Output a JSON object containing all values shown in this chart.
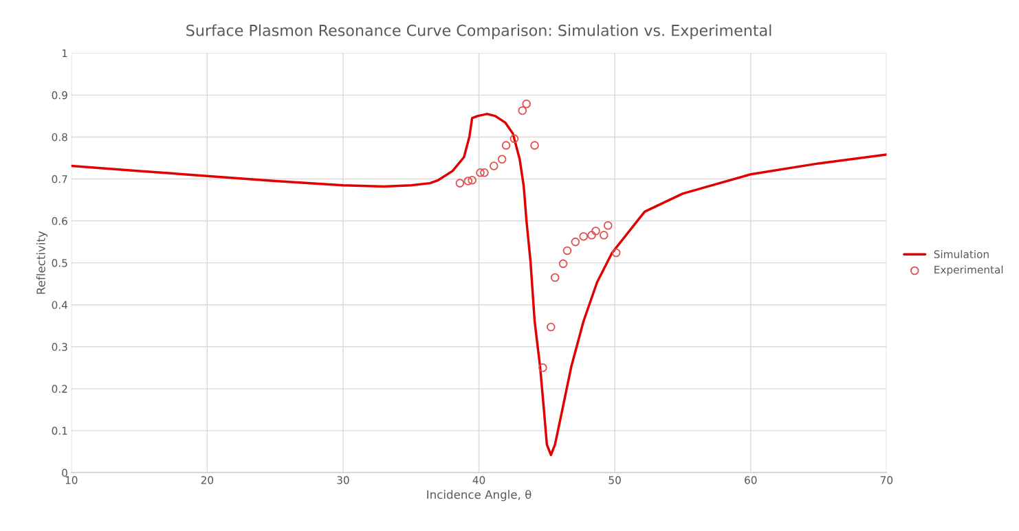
{
  "chart_data": {
    "type": "line",
    "title": "Surface Plasmon Resonance Curve Comparison: Simulation vs. Experimental",
    "xlabel": "Incidence Angle, θ",
    "ylabel": "Reflectivity",
    "xlim": [
      10,
      70
    ],
    "xticks": [
      10,
      20,
      30,
      40,
      50,
      60,
      70
    ],
    "ylim": [
      0,
      1
    ],
    "yticks": [
      0,
      0.1,
      0.2,
      0.3,
      0.4,
      0.5,
      0.6,
      0.7,
      0.8,
      0.9,
      1
    ],
    "grid": true,
    "legend": "right",
    "series": [
      {
        "name": "Simulation",
        "color": "#e00000",
        "marker": "none",
        "line_style": "solid",
        "x": [
          10,
          15,
          20,
          25,
          30,
          33,
          35,
          36.4,
          37,
          38.06,
          38.9,
          39.3,
          39.5,
          39.9,
          40.6,
          41.2,
          41.95,
          42.5,
          43.0,
          43.3,
          43.5,
          43.8,
          44.1,
          44.5,
          44.8,
          45.0,
          45.3,
          45.6,
          46.1,
          46.8,
          47.7,
          48.7,
          49.8,
          52.2,
          55,
          60,
          65,
          70
        ],
        "values": [
          0.731,
          0.719,
          0.707,
          0.695,
          0.685,
          0.682,
          0.685,
          0.69,
          0.697,
          0.719,
          0.752,
          0.801,
          0.845,
          0.85,
          0.855,
          0.85,
          0.834,
          0.808,
          0.747,
          0.682,
          0.6,
          0.502,
          0.361,
          0.253,
          0.144,
          0.067,
          0.042,
          0.067,
          0.144,
          0.253,
          0.361,
          0.454,
          0.524,
          0.622,
          0.665,
          0.711,
          0.737,
          0.758
        ]
      },
      {
        "name": "Experimental",
        "type": "scatter",
        "color": "#e05050",
        "marker": "circle",
        "x": [
          38.6,
          39.2,
          39.5,
          40.1,
          40.4,
          41.1,
          41.7,
          42.0,
          42.6,
          43.2,
          43.5,
          44.1,
          44.7,
          45.3,
          45.6,
          46.2,
          46.5,
          47.1,
          47.7,
          48.3,
          48.6,
          49.2,
          49.5,
          50.1
        ],
        "values": [
          0.69,
          0.695,
          0.697,
          0.715,
          0.715,
          0.731,
          0.747,
          0.78,
          0.796,
          0.863,
          0.879,
          0.78,
          0.25,
          0.347,
          0.465,
          0.498,
          0.529,
          0.55,
          0.563,
          0.566,
          0.576,
          0.566,
          0.589,
          0.524
        ]
      }
    ]
  }
}
